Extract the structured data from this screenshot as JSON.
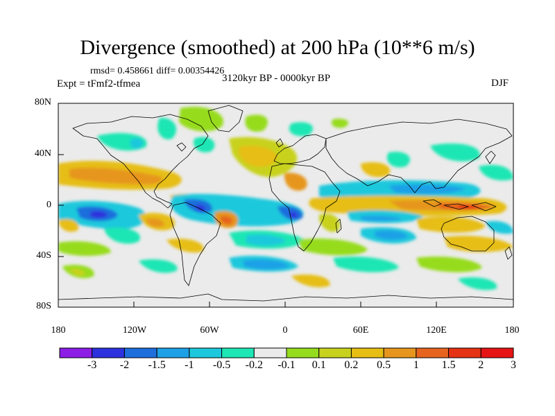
{
  "title": "Divergence (smoothed) at 200 hPa (10**6 m/s)",
  "stats": "rmsd= 0.458661 diff= 0.00354426",
  "experiment": "Expt = tFmf2-tfmea",
  "period": "3120kyr BP - 0000kyr BP",
  "season": "DJF",
  "lat_labels": [
    "80N",
    "40N",
    "0",
    "40S",
    "80S"
  ],
  "lon_labels": [
    "180",
    "120W",
    "60W",
    "0",
    "60E",
    "120E",
    "180"
  ],
  "colorbar": {
    "labels": [
      "-3",
      "-2",
      "-1.5",
      "-1",
      "-0.5",
      "-0.2",
      "-0.1",
      "0.1",
      "0.2",
      "0.5",
      "1",
      "1.5",
      "2",
      "3"
    ],
    "colors": [
      "#8c1ee6",
      "#2d32dc",
      "#1e6edc",
      "#1ea0e6",
      "#1ec8dc",
      "#1ee6b4",
      "#ebebeb",
      "#96dc1e",
      "#c8d21e",
      "#e6be14",
      "#e6961e",
      "#e6641e",
      "#e63214",
      "#e61414"
    ]
  },
  "colors": {
    "background": "#ebebeb",
    "coastline": "#000000"
  }
}
